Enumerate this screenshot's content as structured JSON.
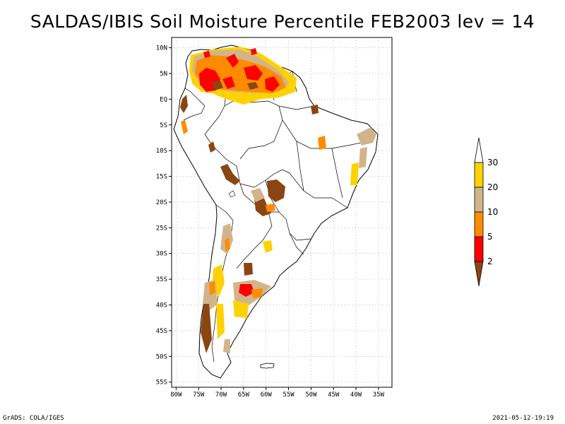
{
  "title": "SALDAS/IBIS Soil Moisture Percentile FEB2003 lev = 14",
  "footer": {
    "left": "GrADS: COLA/IGES",
    "right": "2021-05-12-19:19"
  },
  "map": {
    "lat_range": [
      -56,
      12
    ],
    "lon_range": [
      -81,
      -32
    ],
    "y_ticks": [
      {
        "lat": 10,
        "label": "10N"
      },
      {
        "lat": 5,
        "label": "5N"
      },
      {
        "lat": 0,
        "label": "EQ"
      },
      {
        "lat": -5,
        "label": "5S"
      },
      {
        "lat": -10,
        "label": "10S"
      },
      {
        "lat": -15,
        "label": "15S"
      },
      {
        "lat": -20,
        "label": "20S"
      },
      {
        "lat": -25,
        "label": "25S"
      },
      {
        "lat": -30,
        "label": "30S"
      },
      {
        "lat": -35,
        "label": "35S"
      },
      {
        "lat": -40,
        "label": "40S"
      },
      {
        "lat": -45,
        "label": "45S"
      },
      {
        "lat": -50,
        "label": "50S"
      },
      {
        "lat": -55,
        "label": "55S"
      }
    ],
    "x_ticks": [
      {
        "lon": -80,
        "label": "80W"
      },
      {
        "lon": -75,
        "label": "75W"
      },
      {
        "lon": -70,
        "label": "70W"
      },
      {
        "lon": -65,
        "label": "65W"
      },
      {
        "lon": -60,
        "label": "60W"
      },
      {
        "lon": -55,
        "label": "55W"
      },
      {
        "lon": -50,
        "label": "50W"
      },
      {
        "lon": -45,
        "label": "45W"
      },
      {
        "lon": -40,
        "label": "40W"
      },
      {
        "lon": -35,
        "label": "35W"
      }
    ],
    "grid": "dotted"
  },
  "legend": {
    "levels": [
      {
        "label": "30",
        "color": "#ffffff"
      },
      {
        "label": "20",
        "color": "#ffd200"
      },
      {
        "label": "10",
        "color": "#d2b48c"
      },
      {
        "label": "5",
        "color": "#ff8c00"
      },
      {
        "label": "2",
        "color": "#ff0000"
      }
    ],
    "low_color": "#8b4513"
  }
}
